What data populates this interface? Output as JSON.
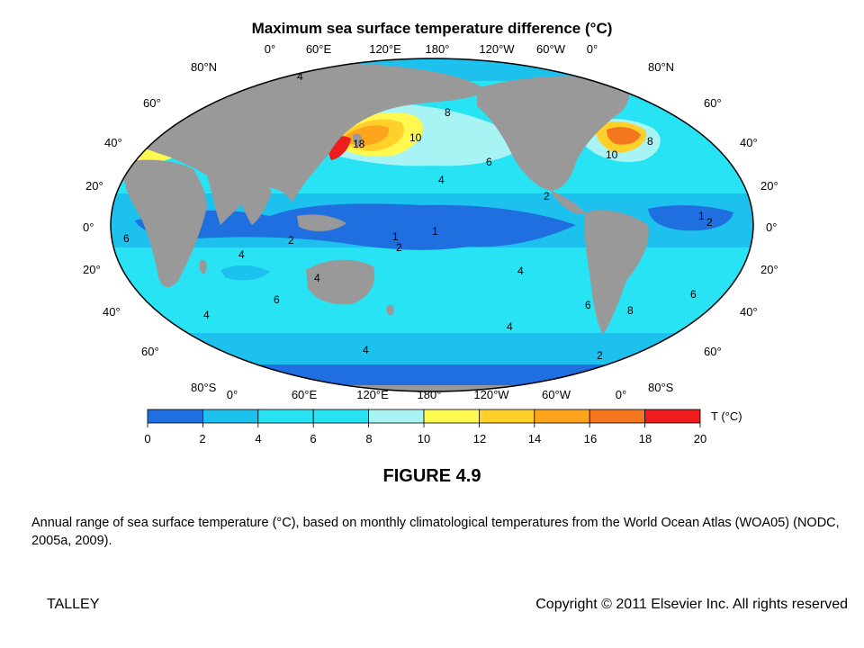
{
  "map": {
    "title": "Maximum sea surface temperature difference (°C)",
    "lon_labels": [
      "0°",
      "60°E",
      "120°E",
      "180°",
      "120°W",
      "60°W",
      "0°"
    ],
    "lat_labels_left": [
      "80°N",
      "60°",
      "40°",
      "20°",
      "0°",
      "20°",
      "40°",
      "60°",
      "80°S"
    ],
    "lat_labels_right": [
      "80°N",
      "60°",
      "40°",
      "20°",
      "0°",
      "20°",
      "40°",
      "60°",
      "80°S"
    ],
    "contour_labels": [
      "4",
      "8",
      "10",
      "18",
      "6",
      "4",
      "8",
      "10",
      "2",
      "1",
      "2",
      "6",
      "4",
      "2",
      "1",
      "1",
      "2",
      "4",
      "4",
      "6",
      "6",
      "4",
      "4",
      "8",
      "6",
      "4",
      "2"
    ],
    "colors": {
      "ocean_0_2": "#1f6fe0",
      "ocean_2_4": "#1cc1ee",
      "ocean_4_6": "#27e3f3",
      "ocean_8_10": "#a8f4f5",
      "warm_10_12": "#fff94f",
      "warm_12_14": "#ffd02a",
      "warm_14_16": "#ffa51d",
      "warm_16_18": "#f4761e",
      "hot_18_20": "#ee1c1c",
      "land": "#999999"
    }
  },
  "colorbar": {
    "unit_label": "T (°C)",
    "ticks": [
      "0",
      "2",
      "4",
      "6",
      "8",
      "10",
      "12",
      "14",
      "16",
      "18",
      "20"
    ],
    "bins": [
      {
        "from": 0,
        "to": 2,
        "color": "#1f6fe0"
      },
      {
        "from": 2,
        "to": 4,
        "color": "#1cc1ee"
      },
      {
        "from": 4,
        "to": 6,
        "color": "#27e3f3"
      },
      {
        "from": 6,
        "to": 8,
        "color": "#27e3f3"
      },
      {
        "from": 8,
        "to": 10,
        "color": "#a8f4f5"
      },
      {
        "from": 10,
        "to": 12,
        "color": "#fff94f"
      },
      {
        "from": 12,
        "to": 14,
        "color": "#ffd02a"
      },
      {
        "from": 14,
        "to": 16,
        "color": "#ffa51d"
      },
      {
        "from": 16,
        "to": 18,
        "color": "#f4761e"
      },
      {
        "from": 18,
        "to": 20,
        "color": "#ee1c1c"
      }
    ]
  },
  "figure": {
    "number": "FIGURE 4.9",
    "caption": "Annual range of sea surface temperature (°C), based on monthly climatological temperatures from the World Ocean Atlas (WOA05) (NODC, 2005a, 2009)."
  },
  "footer": {
    "left": "TALLEY",
    "right": "Copyright © 2011 Elsevier Inc. All rights reserved"
  }
}
